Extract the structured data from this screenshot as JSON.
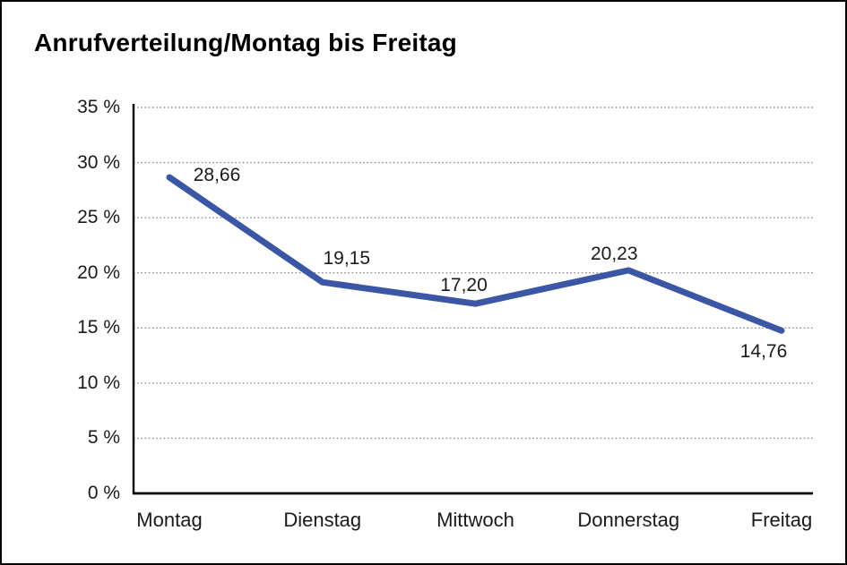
{
  "chart_data": {
    "type": "line",
    "title": "Anrufverteilung/Montag bis Freitag",
    "categories": [
      "Montag",
      "Dienstag",
      "Mittwoch",
      "Donnerstag",
      "Freitag"
    ],
    "values": [
      28.66,
      19.15,
      17.2,
      20.23,
      14.76
    ],
    "value_labels": [
      "28,66",
      "19,15",
      "17,20",
      "20,23",
      "14,76"
    ],
    "ytick_labels": [
      "0 %",
      "5 %",
      "10 %",
      "15 %",
      "20 %",
      "25 %",
      "30 %",
      "35 %"
    ],
    "ylim": [
      0,
      35
    ],
    "ytick_step": 5,
    "xlabel": "",
    "ylabel": "",
    "grid": "horizontal-dotted",
    "legend": "none",
    "colors": {
      "line": "#3A56A5",
      "axis": "#000000",
      "gridline": "#8f8f8f",
      "text": "#1a1a1a",
      "frame_border": "#000000",
      "background": "#ffffff"
    }
  }
}
